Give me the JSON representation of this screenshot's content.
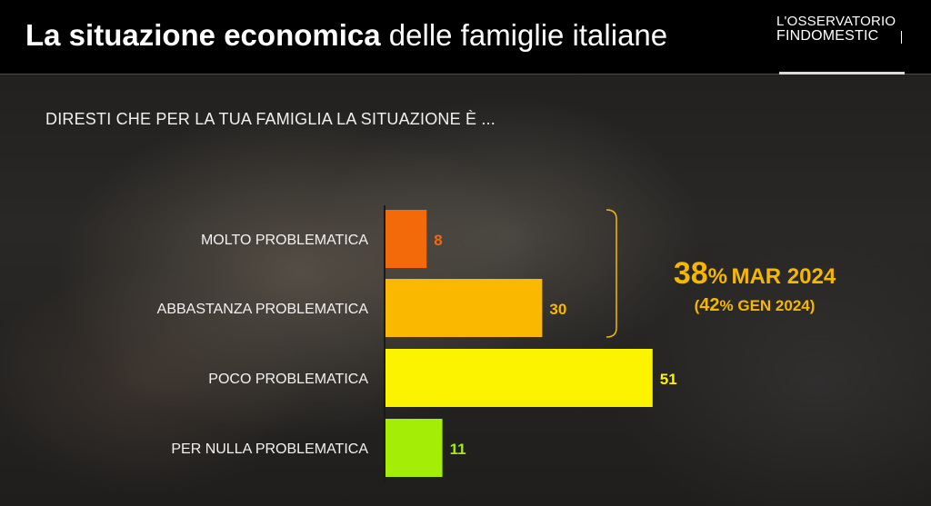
{
  "header": {
    "title_bold": "La situazione economica",
    "title_light": "delle famiglie italiane",
    "logo_line1": "L'OSSERVATORIO",
    "logo_line2": "FINDOMESTIC"
  },
  "question": "DIRESTI CHE PER LA TUA FAMIGLIA LA SITUAZIONE È ...",
  "summary": {
    "main_value": "38",
    "main_unit": "%",
    "main_period": "MAR 2024",
    "sub_open": "(",
    "sub_value": "42",
    "sub_unit": "%",
    "sub_period": "GEN 2024)"
  },
  "chart_data": {
    "type": "bar",
    "orientation": "horizontal",
    "categories": [
      "MOLTO PROBLEMATICA",
      "ABBASTANZA PROBLEMATICA",
      "POCO PROBLEMATICA",
      "PER NULLA PROBLEMATICA"
    ],
    "values": [
      8,
      30,
      51,
      11
    ],
    "colors": [
      "#f26a0a",
      "#fbb800",
      "#fcf300",
      "#a4ed06"
    ],
    "value_label_colors": [
      "#f26a0a",
      "#fbb800",
      "#fcf300",
      "#a4ed06"
    ],
    "xlim": [
      0,
      60
    ],
    "grid": false,
    "legend": "none",
    "bracket": {
      "from_category": 0,
      "to_category": 1,
      "color": "#f5b800"
    }
  }
}
